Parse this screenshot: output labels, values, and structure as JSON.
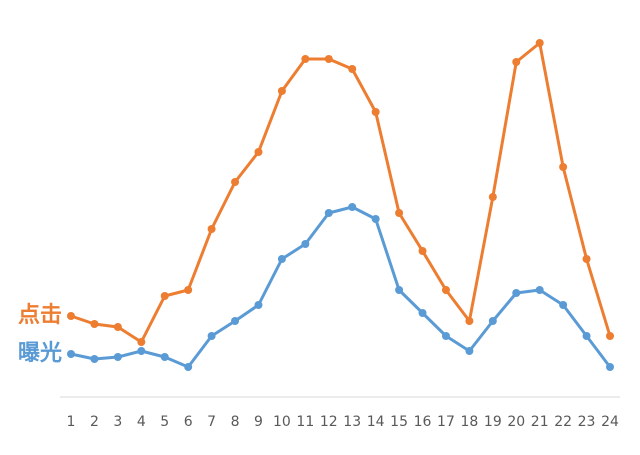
{
  "chart_data": {
    "type": "line",
    "categories": [
      "1",
      "2",
      "3",
      "4",
      "5",
      "6",
      "7",
      "8",
      "9",
      "10",
      "11",
      "12",
      "13",
      "14",
      "15",
      "16",
      "17",
      "18",
      "19",
      "20",
      "21",
      "22",
      "23",
      "24"
    ],
    "series": [
      {
        "name": "点击",
        "color": "#ED7D31",
        "values": [
          81,
          73,
          70,
          55,
          101,
          107,
          168,
          215,
          245,
          306,
          338,
          338,
          328,
          285,
          184,
          146,
          107,
          76,
          200,
          335,
          354,
          230,
          138,
          61
        ]
      },
      {
        "name": "曝光",
        "color": "#5B9BD5",
        "values": [
          43,
          38,
          40,
          46,
          40,
          30,
          61,
          76,
          92,
          138,
          153,
          184,
          190,
          178,
          107,
          84,
          61,
          46,
          76,
          104,
          107,
          92,
          61,
          30
        ]
      }
    ],
    "ylim": [
      0,
      397
    ]
  }
}
